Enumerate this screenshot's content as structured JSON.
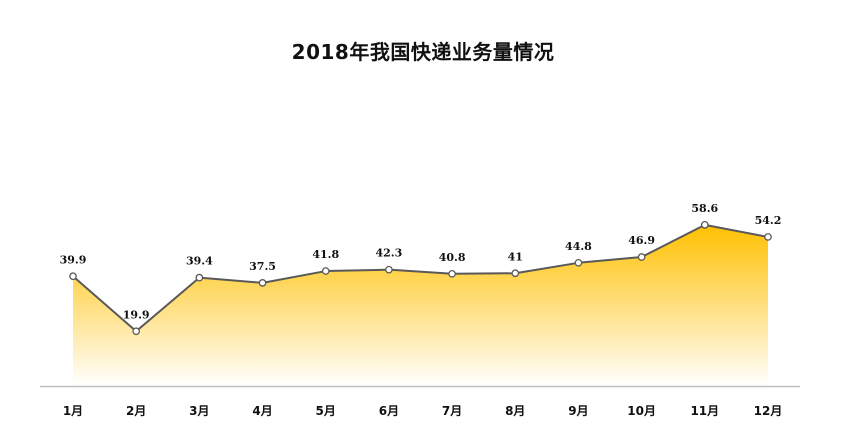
{
  "chart_data": {
    "type": "area",
    "title": "2018年我国快递业务量情况",
    "xlabel": "",
    "ylabel": "",
    "categories": [
      "1月",
      "2月",
      "3月",
      "4月",
      "5月",
      "6月",
      "7月",
      "8月",
      "9月",
      "10月",
      "11月",
      "12月"
    ],
    "series": [
      {
        "values": [
          39.9,
          19.9,
          39.4,
          37.5,
          41.8,
          42.3,
          40.8,
          41,
          44.8,
          46.9,
          58.6,
          54.2
        ],
        "value_labels": [
          "39.9",
          "19.9",
          "39.4",
          "37.5",
          "41.8",
          "42.3",
          "40.8",
          "41",
          "44.8",
          "46.9",
          "58.6",
          "54.2"
        ]
      }
    ],
    "ylim": [
      0,
      70
    ],
    "grid": false,
    "legend": "none",
    "colors": {
      "fill_top": "#FFC000",
      "fill_bottom": "#FFFFFF",
      "line": "#595959",
      "marker_fill": "#FFFFFF",
      "axis": "#BFBFBF"
    }
  }
}
